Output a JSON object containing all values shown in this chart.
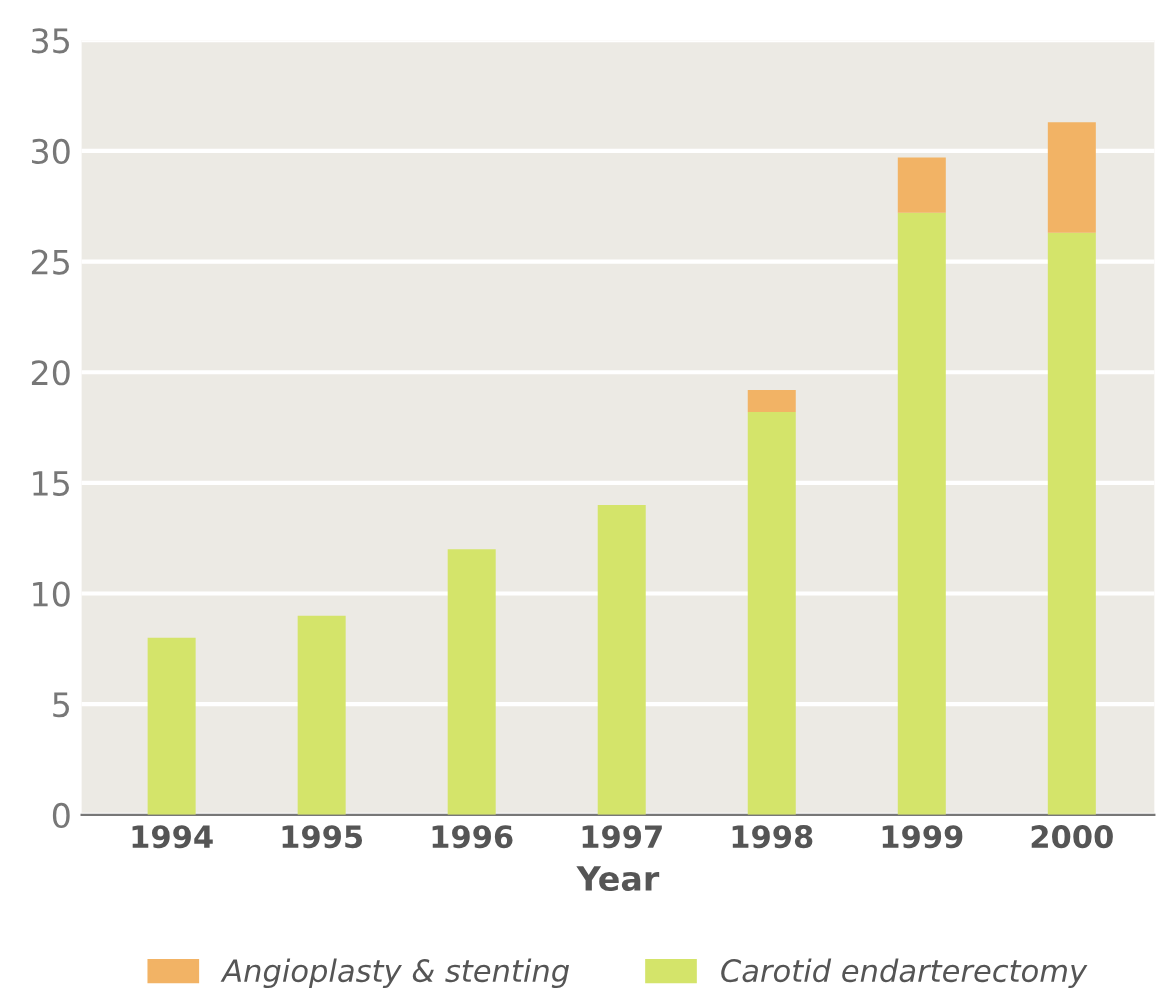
{
  "chart_data": {
    "type": "bar",
    "stacked": true,
    "xlabel": "Year",
    "categories": [
      "1994",
      "1995",
      "1996",
      "1997",
      "1998",
      "1999",
      "2000"
    ],
    "series": [
      {
        "name": "Carotid endarterectomy",
        "color": "#d4e46a",
        "values": [
          8,
          9,
          12,
          14,
          18.2,
          27.2,
          26.3
        ]
      },
      {
        "name": "Angioplasty & stenting",
        "color": "#f2b365",
        "values": [
          null,
          null,
          null,
          null,
          1.0,
          2.5,
          5.0
        ]
      }
    ],
    "ylim": [
      0,
      35
    ],
    "yticks": [
      0,
      5,
      10,
      15,
      20,
      25,
      30,
      35
    ],
    "grid": "y",
    "legend": "bottom"
  }
}
